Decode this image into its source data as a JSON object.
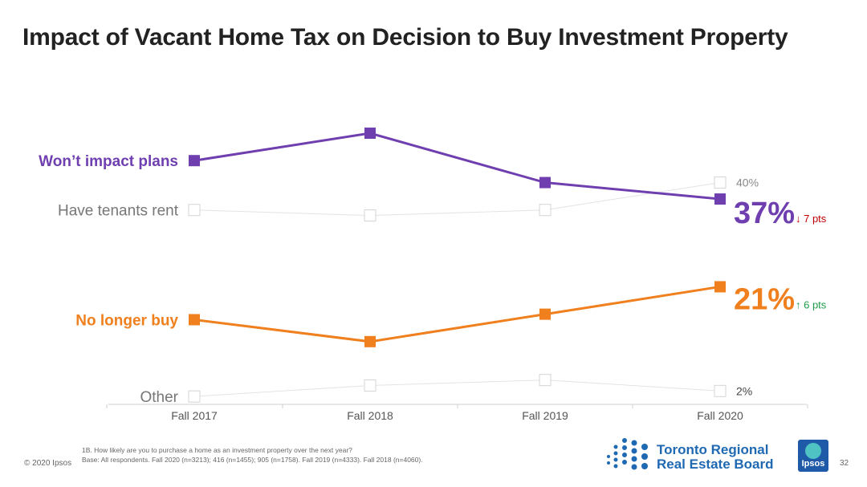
{
  "title": "Impact of Vacant Home Tax on Decision to Buy Investment Property",
  "colors": {
    "purple": "#6f3fb0",
    "orange": "#f07f1e",
    "gray": "#d4d4d4",
    "gray_text": "#777777",
    "red": "#c00000",
    "green": "#1f9a4a",
    "trreb_blue": "#1f69b3"
  },
  "chart_data": {
    "type": "line",
    "categories": [
      "Fall 2017",
      "Fall 2018",
      "Fall 2019",
      "Fall 2020"
    ],
    "series": [
      {
        "name": "Won’t impact plans",
        "values": [
          44,
          49,
          40,
          37
        ],
        "emphasis": true,
        "color": "#6f3fb0",
        "end_label": "37%",
        "change_arrow": "↓",
        "change_text": "7 pts",
        "change_color": "#c00000"
      },
      {
        "name": "Have tenants rent",
        "values": [
          35,
          34,
          35,
          40
        ],
        "emphasis": false,
        "color": "#d4d4d4",
        "end_label": "40%"
      },
      {
        "name": "No longer buy",
        "values": [
          15,
          11,
          16,
          21
        ],
        "emphasis": true,
        "color": "#f07f1e",
        "end_label": "21%",
        "change_arrow": "↑",
        "change_text": "6 pts",
        "change_color": "#1f9a4a"
      },
      {
        "name": "Other",
        "values": [
          1,
          3,
          4,
          2
        ],
        "emphasis": false,
        "color": "#d4d4d4",
        "end_label": "2%"
      }
    ],
    "ylim": [
      0,
      55
    ],
    "grid": false,
    "legend": "left-inline"
  },
  "footnote": {
    "line1": "1B. How likely are you to purchase a home as an investment property over the next year?",
    "line2": "Base: All respondents. Fall 2020 (n=3213); 416 (n=1455); 905 (n=1758). Fall 2019 (n=4333). Fall 2018 (n=4060)."
  },
  "copyright": "© 2020 Ipsos",
  "logos": {
    "trreb_line1": "Toronto Regional",
    "trreb_line2": "Real Estate Board",
    "ipsos": "Ipsos"
  },
  "page_number": "32"
}
